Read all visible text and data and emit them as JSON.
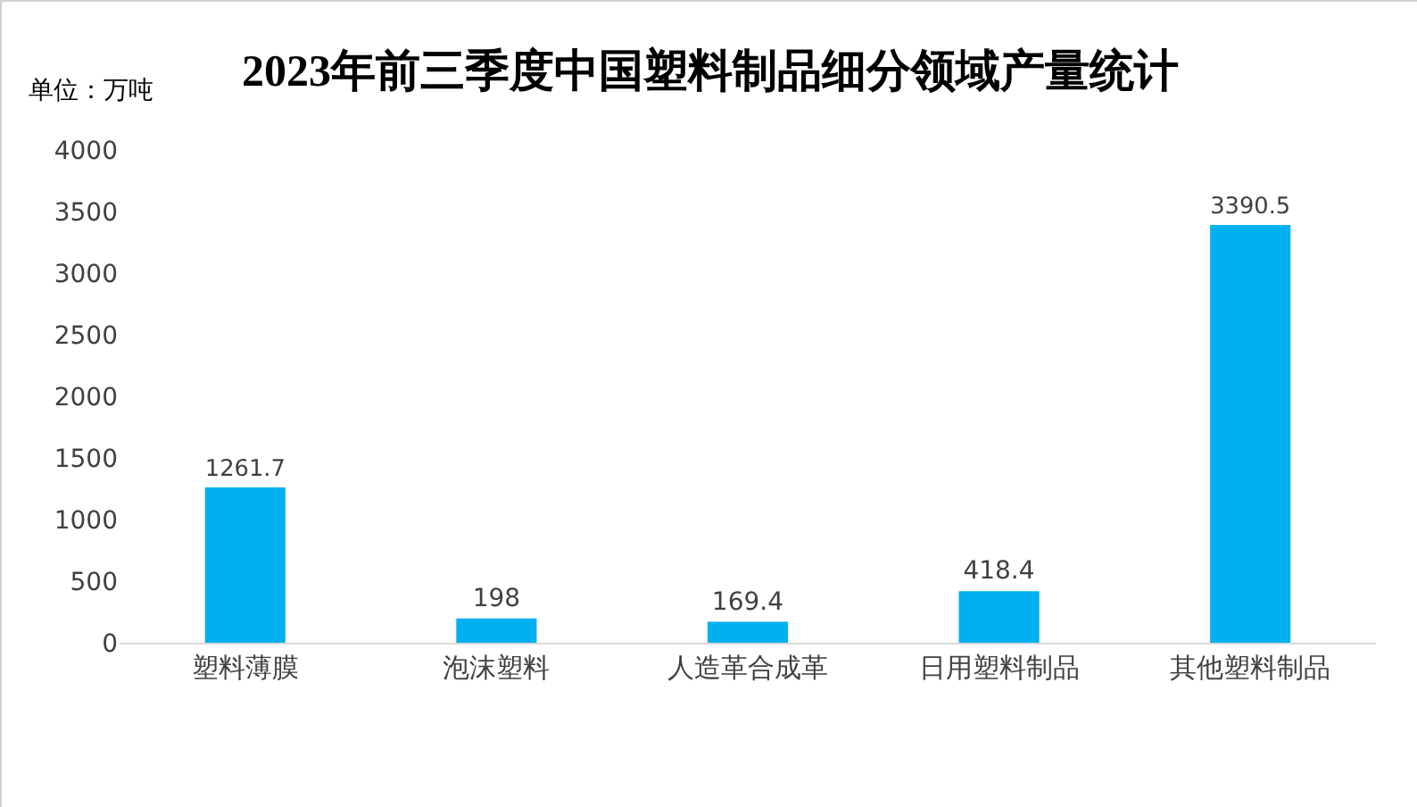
{
  "chart_data": {
    "type": "bar",
    "title": "2023年前三季度中国塑料制品细分领域产量统计",
    "ylabel": "单位：万吨",
    "categories": [
      "塑料薄膜",
      "泡沫塑料",
      "人造革合成革",
      "日用塑料制品",
      "其他塑料制品"
    ],
    "values": [
      1261.7,
      198,
      169.4,
      418.4,
      3390.5
    ],
    "color": "#00b0f0",
    "ylim": [
      0,
      4000
    ],
    "yticks": [
      0,
      500,
      1000,
      1500,
      2000,
      2500,
      3000,
      3500,
      4000
    ],
    "grid": false,
    "data_labels": true
  }
}
